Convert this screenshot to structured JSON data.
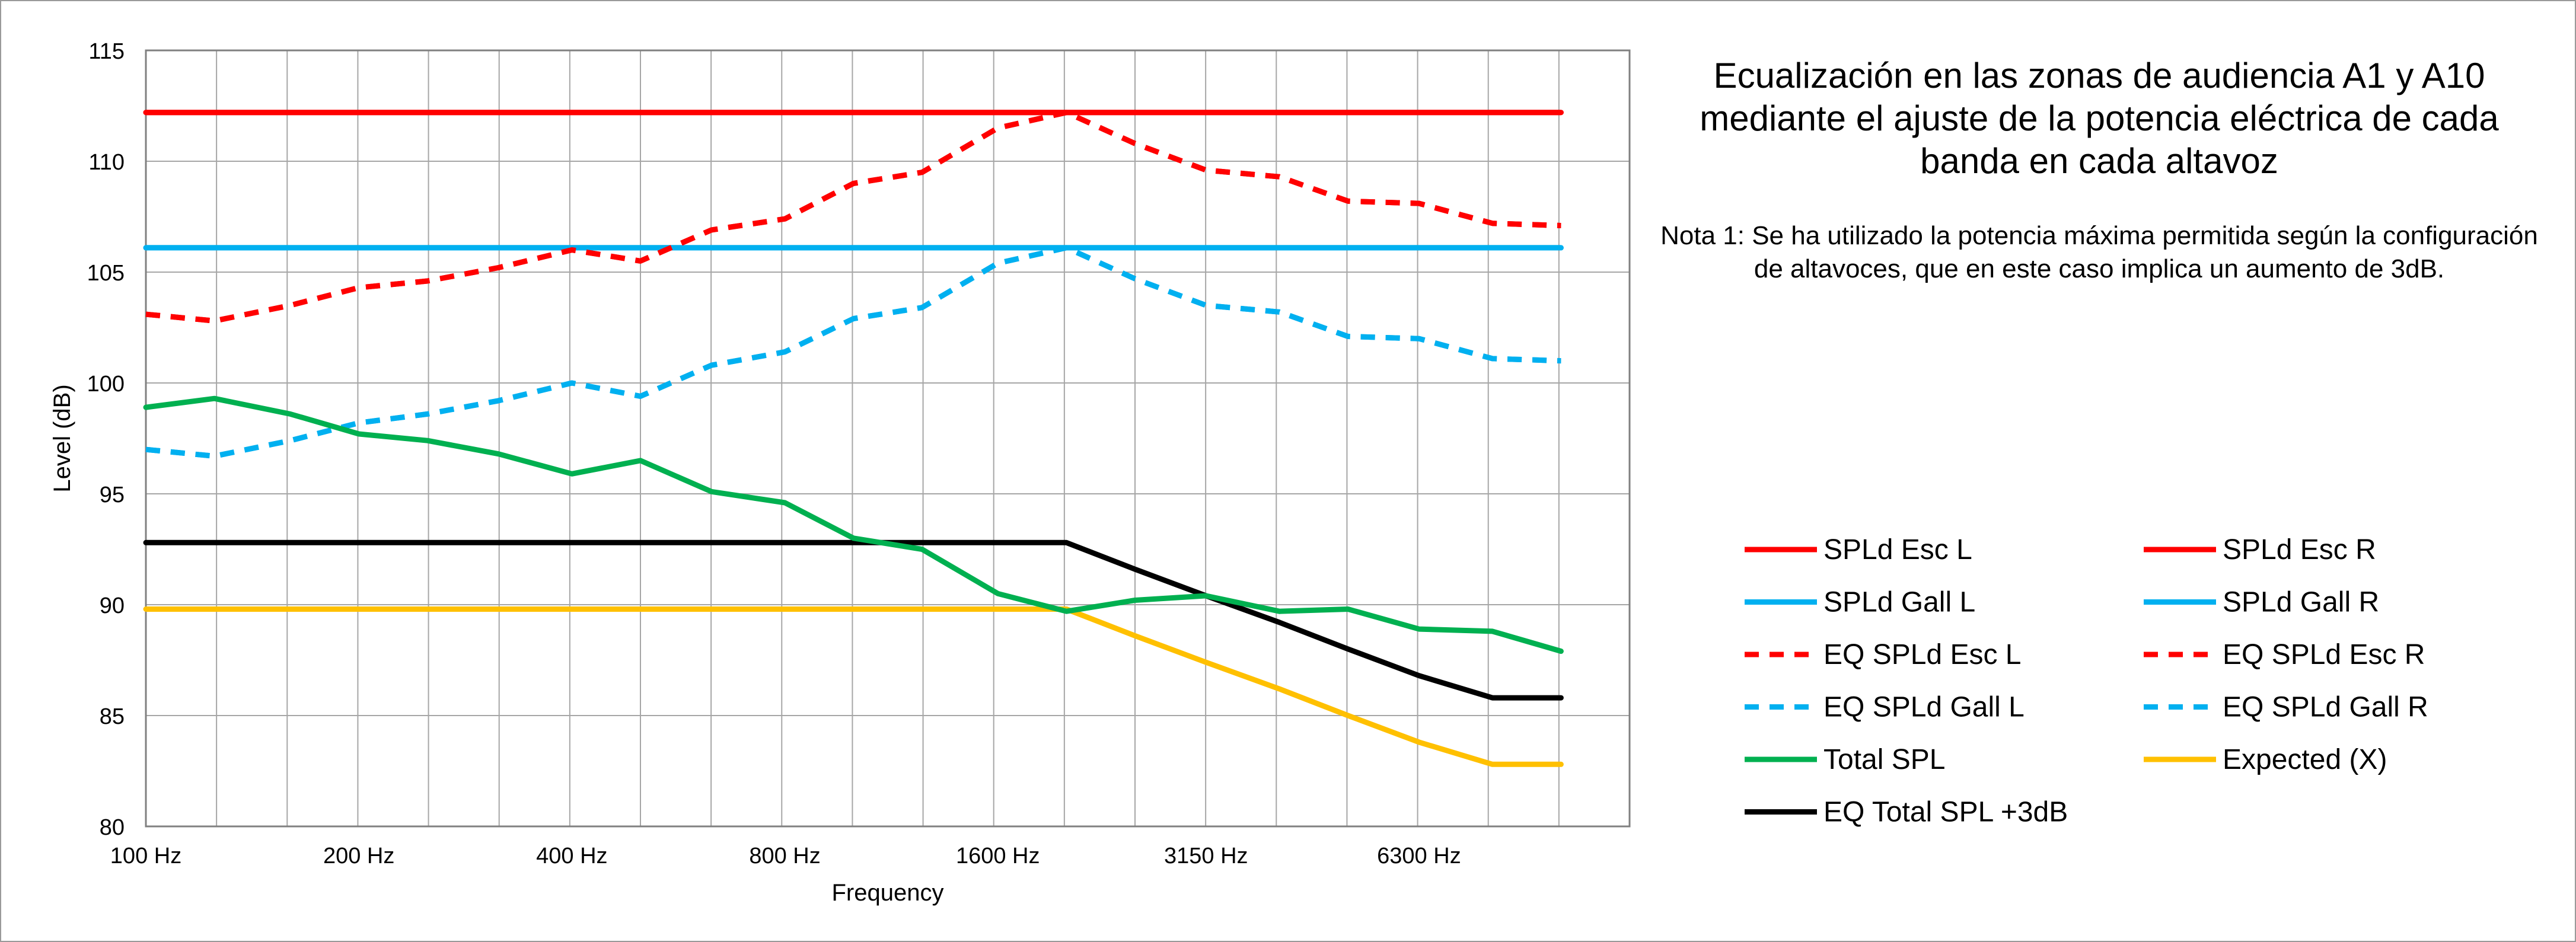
{
  "chart_data": {
    "type": "line",
    "title": "Ecualización en las zonas de audiencia A1 y A10 mediante el ajuste de la potencia eléctrica de cada banda en cada altavoz",
    "note": "Nota 1: Se ha utilizado la potencia máxima permitida según la configuración de altavoces, que en este caso implica un aumento de 3dB.",
    "xlabel": "Frequency",
    "ylabel": "Level (dB)",
    "x_scale": "log",
    "xlim": [
      100,
      12500
    ],
    "ylim": [
      80,
      115
    ],
    "yticks": [
      80,
      85,
      90,
      95,
      100,
      105,
      110,
      115
    ],
    "xticks": [
      {
        "value": 100,
        "label": "100 Hz"
      },
      {
        "value": 200,
        "label": "200 Hz"
      },
      {
        "value": 400,
        "label": "400 Hz"
      },
      {
        "value": 800,
        "label": "800 Hz"
      },
      {
        "value": 1600,
        "label": "1600 Hz"
      },
      {
        "value": 3150,
        "label": "3150 Hz"
      },
      {
        "value": 6300,
        "label": "6300 Hz"
      }
    ],
    "grid": true,
    "legend_placement": "right",
    "x": [
      100,
      125,
      160,
      200,
      250,
      315,
      400,
      500,
      630,
      800,
      1000,
      1250,
      1600,
      2000,
      2500,
      3150,
      4000,
      5000,
      6300,
      8000,
      10000
    ],
    "series": [
      {
        "name": "SPLd Esc L",
        "color": "#ff0000",
        "dash": false,
        "values": [
          112.2,
          112.2,
          112.2,
          112.2,
          112.2,
          112.2,
          112.2,
          112.2,
          112.2,
          112.2,
          112.2,
          112.2,
          112.2,
          112.2,
          112.2,
          112.2,
          112.2,
          112.2,
          112.2,
          112.2,
          112.2
        ]
      },
      {
        "name": "SPLd Esc R",
        "color": "#ff0000",
        "dash": false,
        "values": [
          112.2,
          112.2,
          112.2,
          112.2,
          112.2,
          112.2,
          112.2,
          112.2,
          112.2,
          112.2,
          112.2,
          112.2,
          112.2,
          112.2,
          112.2,
          112.2,
          112.2,
          112.2,
          112.2,
          112.2,
          112.2
        ]
      },
      {
        "name": "SPLd Gall L",
        "color": "#00b0f0",
        "dash": false,
        "values": [
          106.1,
          106.1,
          106.1,
          106.1,
          106.1,
          106.1,
          106.1,
          106.1,
          106.1,
          106.1,
          106.1,
          106.1,
          106.1,
          106.1,
          106.1,
          106.1,
          106.1,
          106.1,
          106.1,
          106.1,
          106.1
        ]
      },
      {
        "name": "SPLd Gall R",
        "color": "#00b0f0",
        "dash": false,
        "values": [
          106.1,
          106.1,
          106.1,
          106.1,
          106.1,
          106.1,
          106.1,
          106.1,
          106.1,
          106.1,
          106.1,
          106.1,
          106.1,
          106.1,
          106.1,
          106.1,
          106.1,
          106.1,
          106.1,
          106.1,
          106.1
        ]
      },
      {
        "name": "EQ SPLd Esc L",
        "color": "#ff0000",
        "dash": true,
        "values": [
          103.1,
          102.8,
          103.5,
          104.3,
          104.6,
          105.2,
          106.0,
          105.5,
          106.9,
          107.4,
          109.0,
          109.5,
          111.5,
          112.2,
          110.8,
          109.6,
          109.3,
          108.2,
          108.1,
          107.2,
          107.1
        ]
      },
      {
        "name": "EQ SPLd Esc R",
        "color": "#ff0000",
        "dash": true,
        "values": [
          103.1,
          102.8,
          103.5,
          104.3,
          104.6,
          105.2,
          106.0,
          105.5,
          106.9,
          107.4,
          109.0,
          109.5,
          111.5,
          112.2,
          110.8,
          109.6,
          109.3,
          108.2,
          108.1,
          107.2,
          107.1
        ]
      },
      {
        "name": "EQ SPLd Gall L",
        "color": "#00b0f0",
        "dash": true,
        "values": [
          97.0,
          96.7,
          97.4,
          98.2,
          98.6,
          99.2,
          100.0,
          99.4,
          100.8,
          101.4,
          102.9,
          103.4,
          105.4,
          106.1,
          104.7,
          103.5,
          103.2,
          102.1,
          102.0,
          101.1,
          101.0
        ]
      },
      {
        "name": "EQ SPLd Gall R",
        "color": "#00b0f0",
        "dash": true,
        "values": [
          97.0,
          96.7,
          97.4,
          98.2,
          98.6,
          99.2,
          100.0,
          99.4,
          100.8,
          101.4,
          102.9,
          103.4,
          105.4,
          106.1,
          104.7,
          103.5,
          103.2,
          102.1,
          102.0,
          101.1,
          101.0
        ]
      },
      {
        "name": "Total SPL",
        "color": "#00b050",
        "dash": false,
        "values": [
          98.9,
          99.3,
          98.6,
          97.7,
          97.4,
          96.8,
          95.9,
          96.5,
          95.1,
          94.6,
          93.0,
          92.5,
          90.5,
          89.7,
          90.2,
          90.4,
          89.7,
          89.8,
          88.9,
          88.8,
          87.9
        ]
      },
      {
        "name": "Expected (X)",
        "color": "#ffc000",
        "dash": false,
        "values": [
          89.8,
          89.8,
          89.8,
          89.8,
          89.8,
          89.8,
          89.8,
          89.8,
          89.8,
          89.8,
          89.8,
          89.8,
          89.8,
          89.8,
          88.6,
          87.4,
          86.2,
          85.0,
          83.8,
          82.8,
          82.8
        ]
      },
      {
        "name": "EQ Total SPL +3dB",
        "color": "#000000",
        "dash": false,
        "values": [
          92.8,
          92.8,
          92.8,
          92.8,
          92.8,
          92.8,
          92.8,
          92.8,
          92.8,
          92.8,
          92.8,
          92.8,
          92.8,
          92.8,
          91.6,
          90.4,
          89.2,
          88.0,
          86.8,
          85.8,
          85.8
        ]
      }
    ]
  }
}
